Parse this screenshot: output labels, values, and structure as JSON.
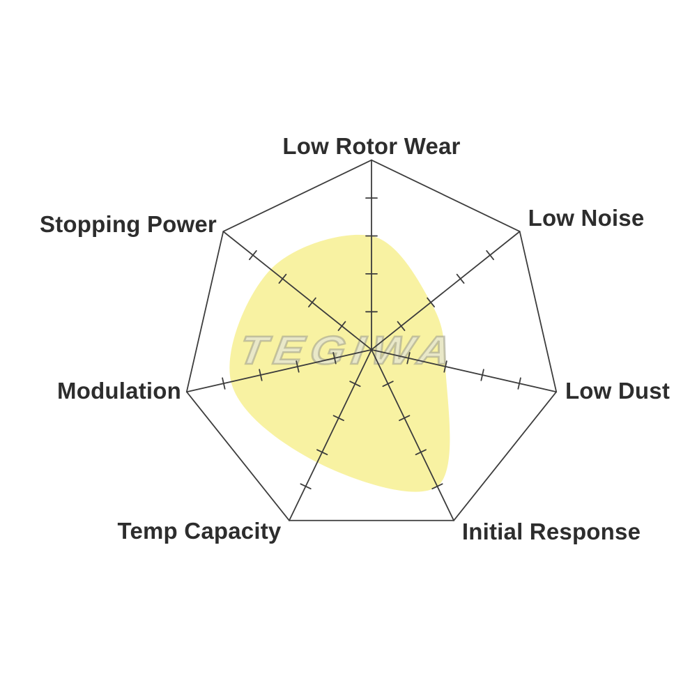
{
  "chart_data": {
    "type": "radar",
    "title": "",
    "categories": [
      "Low Rotor Wear",
      "Low Noise",
      "Low Dust",
      "Initial Response",
      "Temp Capacity",
      "Modulation",
      "Stopping Power"
    ],
    "values": [
      3.0,
      2.0,
      2.0,
      4.0,
      3.3,
      3.8,
      3.4
    ],
    "scale_min": 0,
    "scale_max": 5,
    "tick_interval": 1,
    "grid": "spider-heptagon, ticks on each spoke, no rings",
    "legend": "none",
    "fill_color": "#F8F2A2",
    "line_color": "#3C3C3C",
    "label_color": "#2D2D2D",
    "watermark": "TEGIWA"
  }
}
